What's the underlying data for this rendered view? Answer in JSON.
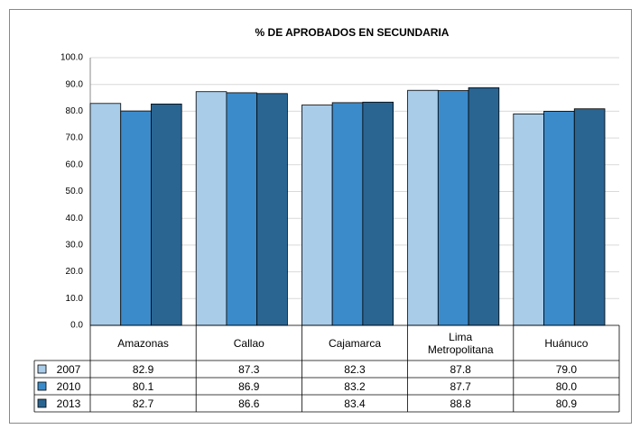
{
  "chart_data": {
    "type": "bar",
    "title": "% DE APROBADOS EN SECUNDARIA",
    "categories": [
      "Amazonas",
      "Callao",
      "Cajamarca",
      "Lima Metropolitana",
      "Huánuco"
    ],
    "series": [
      {
        "name": "2007",
        "color": "#a9cce8",
        "values": [
          82.9,
          87.3,
          82.3,
          87.8,
          79.0
        ],
        "value_labels": [
          "82.9",
          "87.3",
          "82.3",
          "87.8",
          "79.0"
        ]
      },
      {
        "name": "2010",
        "color": "#3b8bcb",
        "values": [
          80.1,
          86.9,
          83.2,
          87.7,
          80.0
        ],
        "value_labels": [
          "80.1",
          "86.9",
          "83.2",
          "87.7",
          "80.0"
        ]
      },
      {
        "name": "2013",
        "color": "#2a6592",
        "values": [
          82.7,
          86.6,
          83.4,
          88.8,
          80.9
        ],
        "value_labels": [
          "82.7",
          "86.6",
          "83.4",
          "88.8",
          "80.9"
        ]
      }
    ],
    "ylim": [
      0,
      100
    ],
    "yticks": [
      {
        "value": 0,
        "label": "0.0"
      },
      {
        "value": 10,
        "label": "10.0"
      },
      {
        "value": 20,
        "label": "20.0"
      },
      {
        "value": 30,
        "label": "30.0"
      },
      {
        "value": 40,
        "label": "40.0"
      },
      {
        "value": 50,
        "label": "50.0"
      },
      {
        "value": 60,
        "label": "60.0"
      },
      {
        "value": 70,
        "label": "70.0"
      },
      {
        "value": 80,
        "label": "80.0"
      },
      {
        "value": 90,
        "label": "90.0"
      },
      {
        "value": 100,
        "label": "100.0"
      }
    ],
    "grid": true
  }
}
